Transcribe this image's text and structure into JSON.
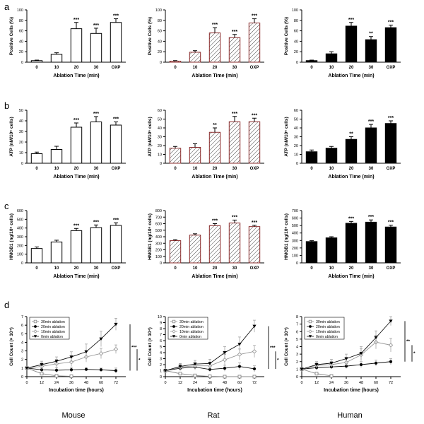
{
  "figure": {
    "row_labels": [
      "a",
      "b",
      "c",
      "d"
    ],
    "column_labels": [
      "Mouse",
      "Rat",
      "Human"
    ],
    "pattern_names": [
      "open",
      "hatched",
      "solid"
    ]
  },
  "chart_data": [
    {
      "type": "bar",
      "id": "a-mouse",
      "row": 0,
      "col": 0,
      "pattern": "open",
      "categories": [
        "0",
        "10",
        "20",
        "30",
        "OXP"
      ],
      "values": [
        3,
        15,
        64,
        55,
        76
      ],
      "errors": [
        1,
        3,
        12,
        10,
        7
      ],
      "ylim": [
        0,
        100
      ],
      "yticks": [
        0,
        20,
        40,
        60,
        80,
        100
      ],
      "ylabel": "Positive Cells (%)",
      "xlabel": "Ablation Time (min)",
      "sig": [
        "",
        "",
        "***",
        "***",
        "***"
      ]
    },
    {
      "type": "bar",
      "id": "a-rat",
      "row": 0,
      "col": 1,
      "pattern": "hatched",
      "categories": [
        "0",
        "10",
        "20",
        "30",
        "OXP"
      ],
      "values": [
        2,
        19,
        56,
        47,
        75
      ],
      "errors": [
        1,
        3,
        10,
        6,
        8
      ],
      "ylim": [
        0,
        100
      ],
      "yticks": [
        0,
        20,
        40,
        60,
        80,
        100
      ],
      "ylabel": "Positive Cells (%)",
      "xlabel": "Ablation Time (min)",
      "sig": [
        "",
        "",
        "***",
        "***",
        "***"
      ]
    },
    {
      "type": "bar",
      "id": "a-human",
      "row": 0,
      "col": 2,
      "pattern": "solid",
      "categories": [
        "0",
        "10",
        "20",
        "30",
        "OXP"
      ],
      "values": [
        3,
        16,
        69,
        43,
        66
      ],
      "errors": [
        1,
        4,
        7,
        6,
        5
      ],
      "ylim": [
        0,
        100
      ],
      "yticks": [
        0,
        20,
        40,
        60,
        80,
        100
      ],
      "ylabel": "Positive Cells (%)",
      "xlabel": "Ablation Time (min)",
      "sig": [
        "",
        "",
        "***",
        "**",
        "***"
      ]
    },
    {
      "type": "bar",
      "id": "b-mouse",
      "row": 1,
      "col": 0,
      "pattern": "open",
      "categories": [
        "0",
        "10",
        "20",
        "30",
        "OXP"
      ],
      "values": [
        9,
        13,
        34,
        39,
        36
      ],
      "errors": [
        1.5,
        3,
        4,
        5,
        3
      ],
      "ylim": [
        0,
        50
      ],
      "yticks": [
        0,
        10,
        20,
        30,
        40,
        50
      ],
      "ylabel": "ATP (nM/10⁶ cells)",
      "xlabel": "Ablation Time (min)",
      "sig": [
        "",
        "",
        "***",
        "***",
        "***"
      ]
    },
    {
      "type": "bar",
      "id": "b-rat",
      "row": 1,
      "col": 1,
      "pattern": "hatched",
      "categories": [
        "0",
        "10",
        "20",
        "30",
        "OXP"
      ],
      "values": [
        17,
        18,
        35,
        47,
        47
      ],
      "errors": [
        2,
        4,
        5,
        6,
        4
      ],
      "ylim": [
        0,
        60
      ],
      "yticks": [
        0,
        10,
        20,
        30,
        40,
        50,
        60
      ],
      "ylabel": "ATP (nM/10⁶ cells)",
      "xlabel": "Ablation Time (min)",
      "sig": [
        "",
        "",
        "**",
        "***",
        "***"
      ]
    },
    {
      "type": "bar",
      "id": "b-human",
      "row": 1,
      "col": 2,
      "pattern": "solid",
      "categories": [
        "0",
        "10",
        "20",
        "30",
        "OXP"
      ],
      "values": [
        13,
        17,
        27,
        40,
        45
      ],
      "errors": [
        2,
        2,
        3,
        4,
        3
      ],
      "ylim": [
        0,
        60
      ],
      "yticks": [
        0,
        10,
        20,
        30,
        40,
        50,
        60
      ],
      "ylabel": "ATP (nM/10⁶ cells)",
      "xlabel": "Ablation Time (min)",
      "sig": [
        "",
        "",
        "**",
        "***",
        "***"
      ]
    },
    {
      "type": "bar",
      "id": "c-mouse",
      "row": 2,
      "col": 0,
      "pattern": "open",
      "categories": [
        "0",
        "10",
        "20",
        "30",
        "OXP"
      ],
      "values": [
        165,
        240,
        370,
        405,
        430
      ],
      "errors": [
        18,
        20,
        25,
        30,
        30
      ],
      "ylim": [
        0,
        600
      ],
      "yticks": [
        0,
        100,
        200,
        300,
        400,
        500,
        600
      ],
      "ylabel": "HMGB1 (ng/10⁶ cells)",
      "xlabel": "Ablation Time (min)",
      "sig": [
        "",
        "",
        "***",
        "***",
        "***"
      ]
    },
    {
      "type": "bar",
      "id": "c-rat",
      "row": 2,
      "col": 1,
      "pattern": "hatched",
      "categories": [
        "0",
        "10",
        "20",
        "30",
        "OXP"
      ],
      "values": [
        340,
        425,
        570,
        610,
        555
      ],
      "errors": [
        15,
        20,
        30,
        45,
        20
      ],
      "ylim": [
        0,
        800
      ],
      "yticks": [
        0,
        100,
        200,
        300,
        400,
        500,
        600,
        700,
        800
      ],
      "ylabel": "HMGB1 (ng/10⁶ cells)",
      "xlabel": "Ablation Time (min)",
      "sig": [
        "",
        "",
        "***",
        "***",
        "***"
      ]
    },
    {
      "type": "bar",
      "id": "c-human",
      "row": 2,
      "col": 2,
      "pattern": "solid",
      "categories": [
        "0",
        "10",
        "20",
        "30",
        "OXP"
      ],
      "values": [
        285,
        335,
        530,
        545,
        480
      ],
      "errors": [
        12,
        15,
        25,
        30,
        25
      ],
      "ylim": [
        0,
        700
      ],
      "yticks": [
        0,
        100,
        200,
        300,
        400,
        500,
        600,
        700
      ],
      "ylabel": "HMGB1 (ng/10⁶ cells)",
      "xlabel": "Ablation Time (min)",
      "sig": [
        "",
        "",
        "***",
        "***",
        "***"
      ]
    },
    {
      "type": "line",
      "id": "d-mouse",
      "row": 3,
      "col": 0,
      "xlabel": "Incubation time (hours)",
      "ylabel": "Cell Count (× 10⁴)",
      "xlim": [
        0,
        80
      ],
      "xticks": [
        0,
        12,
        24,
        36,
        48,
        60,
        72
      ],
      "ylim": [
        0,
        7
      ],
      "yticks": [
        0,
        1,
        2,
        3,
        4,
        5,
        6,
        7
      ],
      "series": [
        {
          "name": "30min ablation",
          "marker": "open-square",
          "x": [
            0,
            12,
            24,
            36
          ],
          "y": [
            1.0,
            0.35,
            0.1,
            0.05
          ],
          "err": [
            0.1,
            0.15,
            0.1,
            0.05
          ]
        },
        {
          "name": "20min ablation",
          "marker": "filled-circle",
          "x": [
            0,
            12,
            24,
            36,
            48,
            60,
            72
          ],
          "y": [
            1.0,
            0.8,
            0.75,
            0.8,
            0.85,
            0.8,
            0.7
          ],
          "err": [
            0.1,
            0.3,
            0.3,
            0.3,
            0.2,
            0.2,
            0.3
          ]
        },
        {
          "name": "10min ablation",
          "marker": "open-diamond",
          "x": [
            0,
            12,
            24,
            36,
            48,
            60,
            72
          ],
          "y": [
            1.0,
            1.2,
            1.5,
            1.7,
            2.3,
            2.7,
            3.2
          ],
          "err": [
            0.1,
            0.4,
            0.5,
            0.5,
            0.6,
            0.6,
            0.5
          ]
        },
        {
          "name": "0min ablation",
          "marker": "filled-triangle",
          "x": [
            0,
            12,
            24,
            36,
            48,
            60,
            72
          ],
          "y": [
            1.0,
            1.4,
            1.8,
            2.3,
            2.9,
            4.4,
            6.1
          ],
          "err": [
            0.1,
            0.4,
            0.5,
            0.6,
            0.9,
            0.9,
            0.7
          ]
        }
      ],
      "brackets": [
        {
          "from": 6.1,
          "to": 0.7,
          "label": "***"
        },
        {
          "from": 3.2,
          "to": 0.7,
          "label": "*"
        }
      ]
    },
    {
      "type": "line",
      "id": "d-rat",
      "row": 3,
      "col": 1,
      "xlabel": "Incubation time (hours)",
      "ylabel": "Cell Count (× 10⁴)",
      "xlim": [
        0,
        80
      ],
      "xticks": [
        0,
        12,
        24,
        36,
        48,
        60,
        72
      ],
      "ylim": [
        0,
        10
      ],
      "yticks": [
        0,
        1,
        2,
        3,
        4,
        5,
        6,
        7,
        8,
        9,
        10
      ],
      "series": [
        {
          "name": "30min ablation",
          "marker": "open-square",
          "x": [
            0,
            12,
            24,
            36,
            48,
            60,
            72
          ],
          "y": [
            1.0,
            0.5,
            0.2,
            0.05,
            0,
            0,
            0
          ],
          "err": [
            0.1,
            0.2,
            0.1,
            0.05,
            0,
            0,
            0
          ]
        },
        {
          "name": "20min ablation",
          "marker": "filled-circle",
          "x": [
            0,
            12,
            24,
            36,
            48,
            60,
            72
          ],
          "y": [
            1.0,
            1.4,
            1.6,
            1.2,
            1.4,
            1.7,
            1.3
          ],
          "err": [
            0.1,
            0.4,
            0.5,
            0.4,
            0.5,
            0.6,
            0.5
          ]
        },
        {
          "name": "10min ablation",
          "marker": "open-diamond",
          "x": [
            0,
            12,
            24,
            36,
            48,
            60,
            72
          ],
          "y": [
            1.0,
            1.6,
            1.8,
            1.8,
            2.8,
            3.7,
            4.2
          ],
          "err": [
            0.1,
            0.5,
            0.5,
            0.6,
            0.9,
            0.9,
            1.0
          ]
        },
        {
          "name": "0min ablation",
          "marker": "filled-triangle",
          "x": [
            0,
            12,
            24,
            36,
            48,
            60,
            72
          ],
          "y": [
            1.0,
            1.7,
            2.1,
            2.2,
            4.0,
            5.4,
            8.4
          ],
          "err": [
            0.1,
            0.5,
            0.6,
            0.7,
            1.0,
            1.2,
            1.0
          ]
        }
      ],
      "brackets": [
        {
          "from": 8.4,
          "to": 1.3,
          "label": "***"
        },
        {
          "from": 4.2,
          "to": 1.3,
          "label": "*"
        }
      ]
    },
    {
      "type": "line",
      "id": "d-human",
      "row": 3,
      "col": 2,
      "xlabel": "Incubation time (hours)",
      "ylabel": "Cell Count (× 10⁴)",
      "xlim": [
        0,
        80
      ],
      "xticks": [
        0,
        12,
        24,
        36,
        48,
        60,
        72
      ],
      "ylim": [
        0,
        8
      ],
      "yticks": [
        0,
        1,
        2,
        3,
        4,
        5,
        6,
        7,
        8
      ],
      "series": [
        {
          "name": "30min ablation",
          "marker": "open-square",
          "x": [
            0,
            12,
            24
          ],
          "y": [
            1.0,
            0.4,
            0.1
          ],
          "err": [
            0.1,
            0.2,
            0.1
          ]
        },
        {
          "name": "20min ablation",
          "marker": "filled-circle",
          "x": [
            0,
            12,
            24,
            36,
            48,
            60,
            72
          ],
          "y": [
            1.0,
            1.2,
            1.3,
            1.4,
            1.6,
            1.8,
            2.0
          ],
          "err": [
            0.1,
            0.3,
            0.3,
            0.3,
            0.4,
            0.4,
            0.4
          ]
        },
        {
          "name": "10min ablation",
          "marker": "open-diamond",
          "x": [
            0,
            12,
            24,
            36,
            48,
            60,
            72
          ],
          "y": [
            1.0,
            1.5,
            1.6,
            1.9,
            2.9,
            4.6,
            4.2
          ],
          "err": [
            0.1,
            0.4,
            0.4,
            0.5,
            0.8,
            0.9,
            0.9
          ]
        },
        {
          "name": "0min ablation",
          "marker": "filled-triangle",
          "x": [
            0,
            12,
            24,
            36,
            48,
            60,
            72
          ],
          "y": [
            1.0,
            1.6,
            1.8,
            2.4,
            3.1,
            5.2,
            7.4
          ],
          "err": [
            0.1,
            0.4,
            0.5,
            0.6,
            0.9,
            0.9,
            0.6
          ]
        }
      ],
      "brackets": [
        {
          "from": 7.4,
          "to": 2.0,
          "label": "**"
        },
        {
          "from": 4.2,
          "to": 2.0,
          "label": "*"
        }
      ]
    }
  ]
}
